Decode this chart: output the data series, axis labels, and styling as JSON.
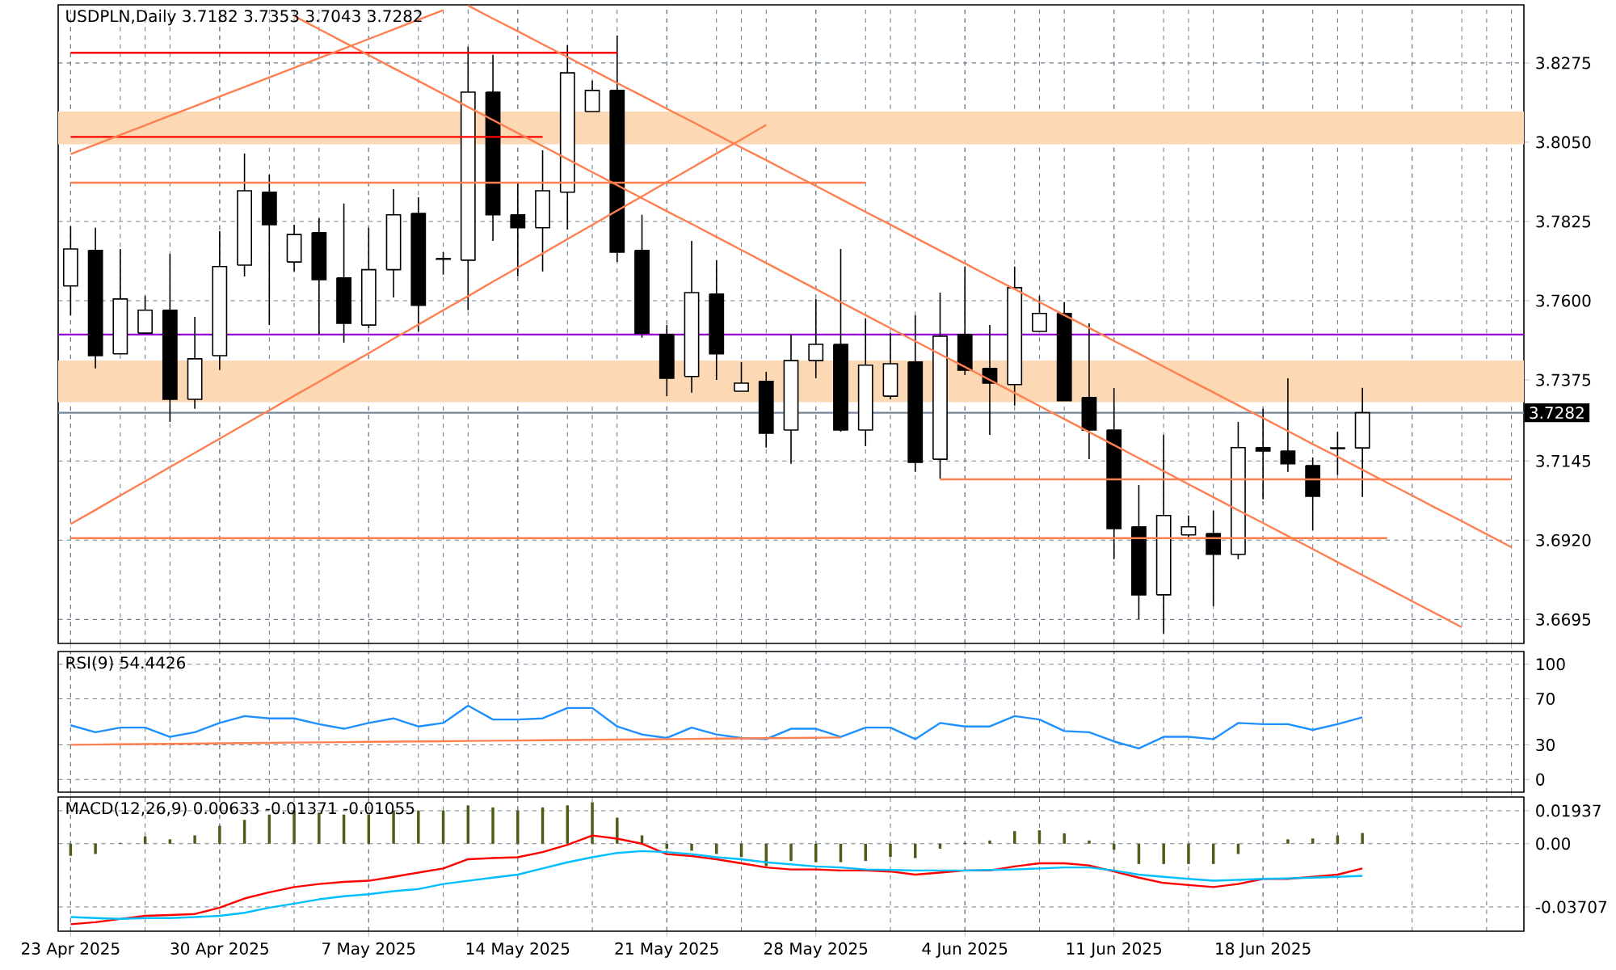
{
  "chart_data": [
    {
      "type": "candlestick",
      "title": "USDPLN,Daily  3.7182 3.7353 3.7043 3.7282",
      "categories": [
        null,
        null,
        null,
        null,
        null,
        null,
        null,
        null,
        null,
        null,
        null,
        null,
        null,
        null,
        null,
        null,
        null,
        null,
        null,
        null,
        null,
        null,
        null,
        null,
        null,
        null,
        null,
        null,
        null,
        null,
        null,
        null,
        null,
        null,
        null,
        null,
        null,
        null,
        null,
        null,
        null,
        null,
        null,
        null,
        null,
        null,
        null,
        null,
        null,
        null,
        null,
        null,
        null,
        null,
        null,
        null,
        null,
        null,
        null
      ],
      "ohlc": [
        [
          3.7642,
          3.7811,
          3.7559,
          3.7747
        ],
        [
          3.7743,
          3.7807,
          3.7408,
          3.7444
        ],
        [
          3.7449,
          3.7747,
          3.7449,
          3.7605
        ],
        [
          3.7508,
          3.7614,
          3.7508,
          3.7573
        ],
        [
          3.7573,
          3.7733,
          3.7256,
          3.732
        ],
        [
          3.732,
          3.7554,
          3.7293,
          3.7435
        ],
        [
          3.7444,
          3.7798,
          3.7403,
          3.7697
        ],
        [
          3.7701,
          3.8018,
          3.7669,
          3.7912
        ],
        [
          3.7908,
          3.7958,
          3.7531,
          3.7816
        ],
        [
          3.771,
          3.7816,
          3.7683,
          3.7788
        ],
        [
          3.7793,
          3.7834,
          3.7504,
          3.766
        ],
        [
          3.7665,
          3.7876,
          3.7481,
          3.7536
        ],
        [
          3.7531,
          3.7807,
          3.7522,
          3.7688
        ],
        [
          3.7688,
          3.7917,
          3.7609,
          3.7844
        ],
        [
          3.7848,
          3.7894,
          3.7513,
          3.7587
        ],
        [
          3.772,
          3.7738,
          3.7674,
          3.7718
        ],
        [
          3.7715,
          3.8321,
          3.7573,
          3.8192
        ],
        [
          3.8192,
          3.8298,
          3.777,
          3.7844
        ],
        [
          3.7844,
          3.7935,
          3.7669,
          3.7807
        ],
        [
          3.7807,
          3.8027,
          3.7683,
          3.7912
        ],
        [
          3.7908,
          3.8325,
          3.7802,
          3.8247
        ],
        [
          3.8137,
          3.8225,
          3.8137,
          3.8197
        ],
        [
          3.8197,
          3.8353,
          3.771,
          3.7738
        ],
        [
          3.7743,
          3.7844,
          3.7495,
          3.7508
        ],
        [
          3.7504,
          3.7531,
          3.7329,
          3.738
        ],
        [
          3.7385,
          3.777,
          3.7339,
          3.7623
        ],
        [
          3.7619,
          3.7715,
          3.7375,
          3.7449
        ],
        [
          3.7343,
          3.7426,
          3.7343,
          3.7366
        ],
        [
          3.7371,
          3.7398,
          3.7183,
          3.7224
        ],
        [
          3.7233,
          3.7504,
          3.7137,
          3.743
        ],
        [
          3.743,
          3.7605,
          3.738,
          3.7476
        ],
        [
          3.7476,
          3.7747,
          3.7228,
          3.7233
        ],
        [
          3.7233,
          3.755,
          3.7187,
          3.7417
        ],
        [
          3.7329,
          3.7508,
          3.732,
          3.7421
        ],
        [
          3.7426,
          3.7559,
          3.7114,
          3.7141
        ],
        [
          3.715,
          3.7623,
          3.7095,
          3.7499
        ],
        [
          3.7504,
          3.7697,
          3.7389,
          3.7403
        ],
        [
          3.7408,
          3.7531,
          3.7219,
          3.7366
        ],
        [
          3.7362,
          3.7697,
          3.7302,
          3.7637
        ],
        [
          3.7513,
          3.7614,
          3.7513,
          3.7564
        ],
        [
          3.7564,
          3.7596,
          3.7316,
          3.7316
        ],
        [
          3.7325,
          3.7536,
          3.715,
          3.7233
        ],
        [
          3.7233,
          3.7352,
          3.6866,
          3.6953
        ],
        [
          3.6958,
          3.7077,
          3.6696,
          3.6765
        ],
        [
          3.6765,
          3.7219,
          3.6655,
          3.699
        ],
        [
          3.6935,
          3.699,
          3.6926,
          3.6958
        ],
        [
          3.6939,
          3.7004,
          3.6733,
          3.688
        ],
        [
          3.688,
          3.7256,
          3.6866,
          3.7183
        ],
        [
          3.7183,
          3.7293,
          3.7036,
          3.7173
        ],
        [
          3.7173,
          3.738,
          3.7114,
          3.7137
        ],
        [
          3.7132,
          3.7155,
          3.6948,
          3.7045
        ],
        [
          3.718,
          3.7228,
          3.7105,
          3.7182
        ],
        [
          3.7182,
          3.7353,
          3.7043,
          3.7282
        ],
        null,
        null,
        null,
        null,
        null,
        null
      ],
      "color": "#000000",
      "series": [
        {
          "type": "line",
          "color": "#ff0000",
          "values": [
            3.8304,
            3.8304,
            3.8304,
            3.8304,
            3.8304,
            3.8304,
            3.8304,
            3.8304,
            3.8304,
            3.8304,
            3.8304,
            3.8304,
            3.8304,
            3.8304,
            3.8304,
            3.8304,
            3.8304,
            3.8304,
            3.8304,
            3.8304,
            3.8304,
            3.8304,
            3.8304,
            null,
            null,
            null,
            null,
            null,
            null,
            null,
            null,
            null,
            null,
            null,
            null,
            null,
            null,
            null,
            null,
            null,
            null,
            null,
            null,
            null,
            null,
            null,
            null,
            null,
            null,
            null,
            null,
            null,
            null,
            null,
            null,
            null,
            null,
            null,
            null
          ]
        },
        {
          "type": "line",
          "color": "#ff0000",
          "values": [
            3.8065,
            3.8065,
            3.8065,
            3.8065,
            3.8065,
            3.8065,
            3.8065,
            3.8065,
            3.8065,
            3.8065,
            3.8065,
            3.8065,
            3.8065,
            3.8065,
            3.8065,
            3.8065,
            3.8065,
            3.8065,
            3.8065,
            3.8065,
            null,
            null,
            null,
            null,
            null,
            null,
            null,
            null,
            null,
            null,
            null,
            null,
            null,
            null,
            null,
            null,
            null,
            null,
            null,
            null,
            null,
            null,
            null,
            null,
            null,
            null,
            null,
            null,
            null,
            null,
            null,
            null,
            null,
            null,
            null,
            null,
            null,
            null,
            null
          ]
        },
        {
          "type": "line",
          "color": "#ff7f50",
          "values": [
            3.7935,
            3.7935,
            3.7935,
            3.7935,
            3.7935,
            3.7935,
            3.7935,
            3.7935,
            3.7935,
            3.7935,
            3.7935,
            3.7935,
            3.7935,
            3.7935,
            3.7935,
            3.7935,
            3.7935,
            3.7935,
            3.7935,
            3.7935,
            3.7935,
            3.7935,
            3.7935,
            3.7935,
            3.7935,
            3.7935,
            3.7935,
            3.7935,
            3.7935,
            3.7935,
            3.7935,
            3.7935,
            3.7935,
            null,
            null,
            null,
            null,
            null,
            null,
            null,
            null,
            null,
            null,
            null,
            null,
            null,
            null,
            null,
            null,
            null,
            null,
            null,
            null,
            null,
            null,
            null,
            null,
            null,
            null
          ]
        },
        {
          "type": "line",
          "color": "#ff7f50",
          "values": [
            null,
            null,
            null,
            null,
            null,
            null,
            null,
            null,
            null,
            null,
            null,
            null,
            null,
            null,
            null,
            null,
            null,
            null,
            null,
            null,
            null,
            null,
            null,
            null,
            null,
            null,
            null,
            null,
            null,
            null,
            null,
            null,
            null,
            null,
            null,
            3.7093,
            3.7093,
            3.7093,
            3.7093,
            3.7093,
            3.7093,
            3.7093,
            3.7093,
            3.7093,
            3.7093,
            3.7093,
            3.7093,
            3.7093,
            3.7093,
            3.7093,
            3.7093,
            3.7093,
            3.7093,
            3.7093,
            3.7093,
            3.7093,
            3.7093,
            3.7093,
            3.7093
          ]
        },
        {
          "type": "line",
          "color": "#ff7f50",
          "values": [
            3.6926,
            3.6926,
            3.6926,
            3.6926,
            3.6926,
            3.6926,
            3.6926,
            3.6926,
            3.6926,
            3.6926,
            3.6926,
            3.6926,
            3.6926,
            3.6926,
            3.6926,
            3.6926,
            3.6926,
            3.6926,
            3.6926,
            3.6926,
            3.6926,
            3.6926,
            3.6926,
            3.6926,
            3.6926,
            3.6926,
            3.6926,
            3.6926,
            3.6926,
            3.6926,
            3.6926,
            3.6926,
            3.6926,
            3.6926,
            3.6926,
            3.6926,
            3.6926,
            3.6926,
            3.6926,
            3.6926,
            3.6926,
            3.6926,
            3.6926,
            3.6926,
            3.6926,
            3.6926,
            3.6926,
            3.6926,
            3.6926,
            3.6926,
            3.6926,
            3.6926,
            3.6926,
            3.6926,
            null,
            null,
            null,
            null,
            null
          ]
        },
        {
          "type": "line",
          "color": "#ff7f50",
          "values": [
            3.6966,
            3.7006,
            3.7047,
            3.7087,
            3.7128,
            3.7168,
            3.7208,
            3.7249,
            3.7289,
            3.733,
            3.737,
            3.7411,
            3.7451,
            3.7492,
            3.7532,
            3.7573,
            3.7613,
            3.7654,
            3.7694,
            3.7734,
            3.7775,
            3.7815,
            3.7856,
            3.7896,
            3.7937,
            3.7977,
            3.8018,
            3.8058,
            3.8099,
            null,
            null,
            null,
            null,
            null,
            null,
            null,
            null,
            null,
            null,
            null,
            null,
            null,
            null,
            null,
            null,
            null,
            null,
            null,
            null,
            null,
            null,
            null,
            null,
            null,
            null,
            null,
            null,
            null,
            null
          ]
        },
        {
          "type": "line",
          "color": "#ff7f50",
          "values": [
            3.8016,
            3.8043,
            3.8071,
            3.8098,
            3.8125,
            3.8152,
            3.818,
            3.8207,
            3.8234,
            3.8261,
            3.8289,
            3.8316,
            3.8343,
            3.837,
            3.8398,
            3.8425,
            null,
            null,
            null,
            null,
            null,
            null,
            null,
            null,
            null,
            null,
            null,
            null,
            null,
            null,
            null,
            null,
            null,
            null,
            null,
            null,
            null,
            null,
            null,
            null,
            null,
            null,
            null,
            null,
            null,
            null,
            null,
            null,
            null,
            null,
            null,
            null,
            null,
            null,
            null,
            null,
            null,
            null,
            null
          ]
        },
        {
          "type": "line",
          "color": "#ff7f50",
          "values": [
            null,
            null,
            null,
            null,
            null,
            null,
            null,
            null,
            null,
            null,
            null,
            null,
            null,
            null,
            null,
            null,
            3.8438,
            3.8401,
            3.8365,
            3.8328,
            3.8292,
            3.8255,
            3.8218,
            3.8182,
            3.8145,
            3.8109,
            3.8072,
            3.8035,
            3.7999,
            3.7962,
            3.7926,
            3.7889,
            3.7852,
            3.7816,
            3.7779,
            3.7742,
            3.7706,
            3.7669,
            3.7633,
            3.7596,
            3.7559,
            3.7523,
            3.7486,
            3.745,
            3.7413,
            3.7376,
            3.734,
            3.7303,
            3.7267,
            3.723,
            3.7193,
            3.7157,
            3.712,
            3.7083,
            3.7047,
            3.701,
            3.6974,
            3.6937,
            3.69
          ]
        },
        {
          "type": "line",
          "color": "#ff7f50",
          "values": [
            null,
            null,
            null,
            null,
            null,
            null,
            null,
            null,
            null,
            3.8408,
            3.8371,
            3.8334,
            3.8297,
            3.826,
            3.8224,
            3.8187,
            3.815,
            3.8113,
            3.8076,
            3.8039,
            3.8002,
            3.7965,
            3.7928,
            3.7891,
            3.7854,
            3.7818,
            3.7781,
            3.7744,
            3.7707,
            3.767,
            3.7633,
            3.7596,
            3.7559,
            3.7522,
            3.7485,
            3.7448,
            3.7412,
            3.7375,
            3.7338,
            3.7301,
            3.7264,
            3.7227,
            3.719,
            3.7153,
            3.7116,
            3.7079,
            3.7042,
            3.7005,
            3.6969,
            3.6932,
            3.6895,
            3.6858,
            3.6821,
            3.6784,
            3.6747,
            3.671,
            3.6673,
            null,
            null
          ]
        }
      ],
      "ref_lines": [
        {
          "axis": "y",
          "value": 3.7504,
          "color": "#9400d3"
        },
        {
          "axis": "y",
          "value": 3.7282,
          "label": "3.7282",
          "color": "#778899"
        }
      ],
      "bands": [
        {
          "axis": "y",
          "from": 3.8044,
          "to": 3.8137,
          "color": "#fcd9b4"
        },
        {
          "axis": "y",
          "from": 3.7312,
          "to": 3.743,
          "color": "#fcd9b4"
        }
      ],
      "ylim": [
        3.6627,
        3.844
      ],
      "yticks": [
        3.8275,
        {
          "value": 3.805,
          "label": "3.8050"
        },
        3.7825,
        {
          "value": 3.76,
          "label": "3.7600"
        },
        3.7375,
        3.7145,
        {
          "value": 3.692,
          "label": "3.6920"
        },
        3.6695
      ],
      "grid": true,
      "tick_labels": "y"
    },
    {
      "type": "line",
      "title": "RSI(9) 54.4426",
      "categories": [
        null,
        null,
        null,
        null,
        null,
        null,
        null,
        null,
        null,
        null,
        null,
        null,
        null,
        null,
        null,
        null,
        null,
        null,
        null,
        null,
        null,
        null,
        null,
        null,
        null,
        null,
        null,
        null,
        null,
        null,
        null,
        null,
        null,
        null,
        null,
        null,
        null,
        null,
        null,
        null,
        null,
        null,
        null,
        null,
        null,
        null,
        null,
        null,
        null,
        null,
        null,
        null,
        null,
        null,
        null,
        null,
        null,
        null,
        null
      ],
      "series": [
        {
          "color": "#1e90ff",
          "values": [
            47,
            41,
            45,
            45,
            37,
            41,
            49,
            55,
            53,
            53,
            48,
            44,
            49,
            53,
            46,
            49,
            64,
            52,
            52,
            53,
            62,
            62,
            46,
            39,
            36,
            45,
            39,
            36,
            35,
            44,
            44,
            37,
            45,
            45,
            35,
            49,
            46,
            46,
            55,
            52,
            42,
            41,
            33,
            27,
            37,
            37,
            35,
            49,
            48,
            48,
            43,
            48,
            54,
            null,
            null,
            null,
            null,
            null,
            null
          ]
        },
        {
          "type": "line",
          "color": "#ff7f50",
          "values": [
            30.1,
            30.3,
            30.5,
            30.7,
            30.9,
            31.1,
            31.4,
            31.6,
            31.8,
            32.0,
            32.2,
            32.4,
            32.6,
            32.8,
            33.0,
            33.2,
            33.4,
            33.6,
            33.8,
            34.0,
            34.2,
            34.4,
            34.6,
            34.8,
            35.0,
            35.2,
            35.4,
            35.6,
            35.8,
            36.0,
            36.2,
            36.4,
            null,
            null,
            null,
            null,
            null,
            null,
            null,
            null,
            null,
            null,
            null,
            null,
            null,
            null,
            null,
            null,
            null,
            null,
            null,
            null,
            null,
            null,
            null,
            null,
            null,
            null,
            null
          ]
        }
      ],
      "ylim": [
        -11,
        111
      ],
      "yticks": [
        100,
        70,
        30,
        0
      ],
      "grid": true,
      "tick_labels": "y"
    },
    {
      "type": "bar",
      "title": "MACD(12,26,9) 0.00633 -0.01371 -0.01055",
      "categories": [
        "23 Apr 2025",
        null,
        null,
        null,
        null,
        null,
        "30 Apr 2025",
        null,
        null,
        null,
        null,
        null,
        "7 May 2025",
        null,
        null,
        null,
        null,
        null,
        "14 May 2025",
        null,
        null,
        null,
        null,
        null,
        "21 May 2025",
        null,
        null,
        null,
        null,
        null,
        "28 May 2025",
        null,
        null,
        null,
        null,
        null,
        "4 Jun 2025",
        null,
        null,
        null,
        null,
        null,
        "11 Jun 2025",
        null,
        null,
        null,
        null,
        null,
        "18 Jun 2025",
        null,
        null,
        null,
        null,
        null,
        null,
        null,
        null,
        null,
        null
      ],
      "series": [
        {
          "type": "bar",
          "color": "#4b5d16",
          "values": [
            -0.0071,
            -0.006,
            0.0005,
            0.0043,
            0.0026,
            0.0049,
            0.0105,
            0.014,
            0.0171,
            0.0195,
            0.0182,
            0.0171,
            0.0171,
            0.0195,
            0.0195,
            0.0195,
            0.0225,
            0.0213,
            0.0195,
            0.0213,
            0.0225,
            0.0243,
            0.0153,
            0.0049,
            -0.0029,
            -0.0041,
            -0.006,
            -0.0078,
            -0.0132,
            -0.0101,
            -0.0108,
            -0.0108,
            -0.0101,
            -0.0078,
            -0.0084,
            -0.0029,
            0.0005,
            0.0019,
            0.0074,
            0.0079,
            0.0061,
            0.0019,
            -0.0035,
            -0.0119,
            -0.0119,
            -0.0119,
            -0.0119,
            -0.006,
            null,
            0.0026,
            0.0031,
            0.0049,
            0.0063,
            null,
            null,
            null,
            null,
            null,
            null
          ]
        },
        {
          "type": "line",
          "color": "#ff0000",
          "values": [
            -0.0472,
            -0.046,
            -0.0441,
            -0.0423,
            -0.0418,
            -0.0412,
            -0.0375,
            -0.0321,
            -0.0285,
            -0.0254,
            -0.0236,
            -0.0224,
            -0.0217,
            -0.0194,
            -0.0169,
            -0.0145,
            -0.0091,
            -0.0084,
            -0.0079,
            -0.0049,
            -0.0006,
            0.0048,
            0.003,
            0.0,
            -0.0061,
            -0.0072,
            -0.0091,
            -0.0115,
            -0.0139,
            -0.0151,
            -0.0151,
            -0.0157,
            -0.0157,
            -0.0163,
            -0.0181,
            -0.0169,
            -0.0157,
            -0.0157,
            -0.0133,
            -0.0115,
            -0.0115,
            -0.0127,
            -0.0163,
            -0.0199,
            -0.023,
            -0.0242,
            -0.0254,
            -0.0236,
            -0.0206,
            -0.0206,
            -0.0194,
            -0.0181,
            -0.0145,
            null,
            null,
            null,
            null,
            null,
            null
          ]
        },
        {
          "type": "line",
          "color": "#00bfff",
          "values": [
            -0.043,
            -0.0436,
            -0.0441,
            -0.0436,
            -0.0436,
            -0.043,
            -0.0423,
            -0.0405,
            -0.0375,
            -0.0351,
            -0.0326,
            -0.0308,
            -0.0296,
            -0.0278,
            -0.0266,
            -0.0236,
            -0.0217,
            -0.0199,
            -0.0181,
            -0.0145,
            -0.0109,
            -0.0079,
            -0.0054,
            -0.0043,
            -0.0049,
            -0.0061,
            -0.0079,
            -0.0091,
            -0.0109,
            -0.0121,
            -0.0133,
            -0.0139,
            -0.0151,
            -0.0154,
            -0.0157,
            -0.0157,
            -0.0157,
            -0.0154,
            -0.0151,
            -0.0145,
            -0.0139,
            -0.0139,
            -0.0157,
            -0.0181,
            -0.0194,
            -0.0206,
            -0.0217,
            -0.0212,
            -0.0206,
            -0.0203,
            -0.0199,
            -0.0194,
            -0.0188,
            null,
            null,
            null,
            null,
            null,
            null
          ]
        }
      ],
      "ylim": [
        -0.0513,
        0.0274
      ],
      "yticks": [
        0.01937,
        {
          "value": 0,
          "label": "0.00"
        },
        -0.03707
      ],
      "grid": true
    }
  ]
}
